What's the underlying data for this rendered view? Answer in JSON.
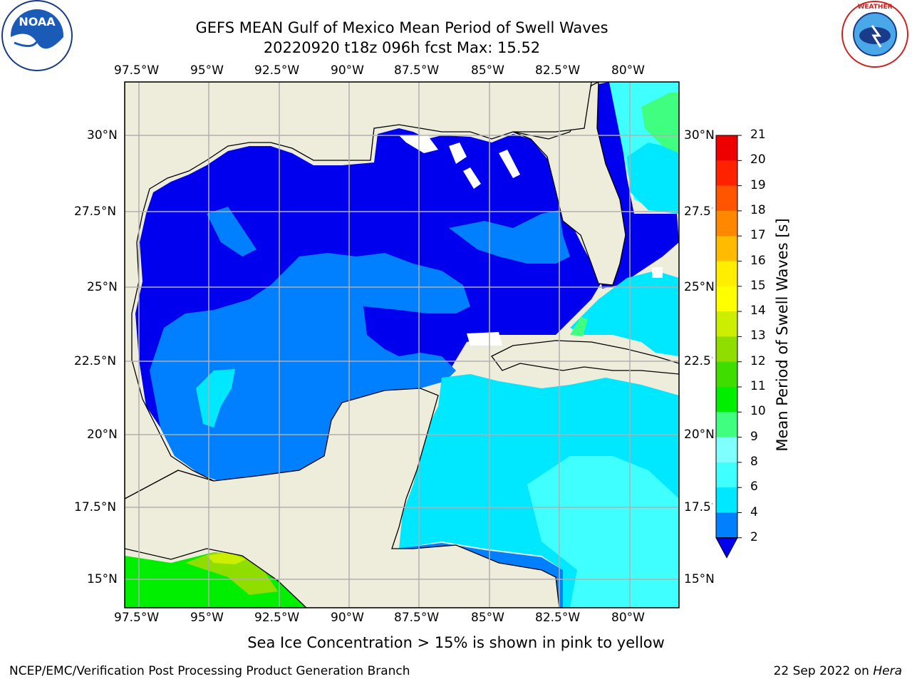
{
  "header": {
    "title_line1": "GEFS MEAN Gulf of Mexico Mean Period of Swell Waves",
    "title_line2": "20220920 t18z 096h fcst   Max: 15.52"
  },
  "logos": {
    "left": "NOAA",
    "right": "NATIONAL WEATHER SERVICE"
  },
  "map": {
    "lon_ticks": [
      "97.5°W",
      "95°W",
      "92.5°W",
      "90°W",
      "87.5°W",
      "85°W",
      "82.5°W",
      "80°W"
    ],
    "lat_ticks_left": [
      "30°N",
      "27.5°N",
      "25°N",
      "22.5°N",
      "20°N",
      "17.5°N",
      "15°N"
    ],
    "lat_ticks_right": [
      "30°N",
      "27.5°N",
      "25°N",
      "22.5°N",
      "20°N",
      "17.5°N",
      "15°N"
    ],
    "land_color": "#eeeddc",
    "grid_color": "#b0b0b0"
  },
  "colorbar": {
    "label": "Mean Period of Swell Waves [s]",
    "ticks": [
      "2",
      "4",
      "6",
      "8",
      "9",
      "10",
      "11",
      "12",
      "13",
      "14",
      "15",
      "16",
      "17",
      "18",
      "19",
      "20",
      "21"
    ],
    "colors": [
      "#0000ee",
      "#0080ff",
      "#00e8ff",
      "#40ffff",
      "#80ffff",
      "#40ff80",
      "#00ee00",
      "#40dd00",
      "#90dd00",
      "#ccee00",
      "#ffff00",
      "#ffee00",
      "#ffbb00",
      "#ff8800",
      "#ff5500",
      "#ff2200",
      "#ee0000"
    ]
  },
  "note": "Sea Ice Concentration > 15% is shown in pink to yellow",
  "footer": {
    "left": "NCEP/EMC/Verification Post Processing Product Generation Branch",
    "date": "22 Sep 2022 on ",
    "host": "Hera"
  }
}
